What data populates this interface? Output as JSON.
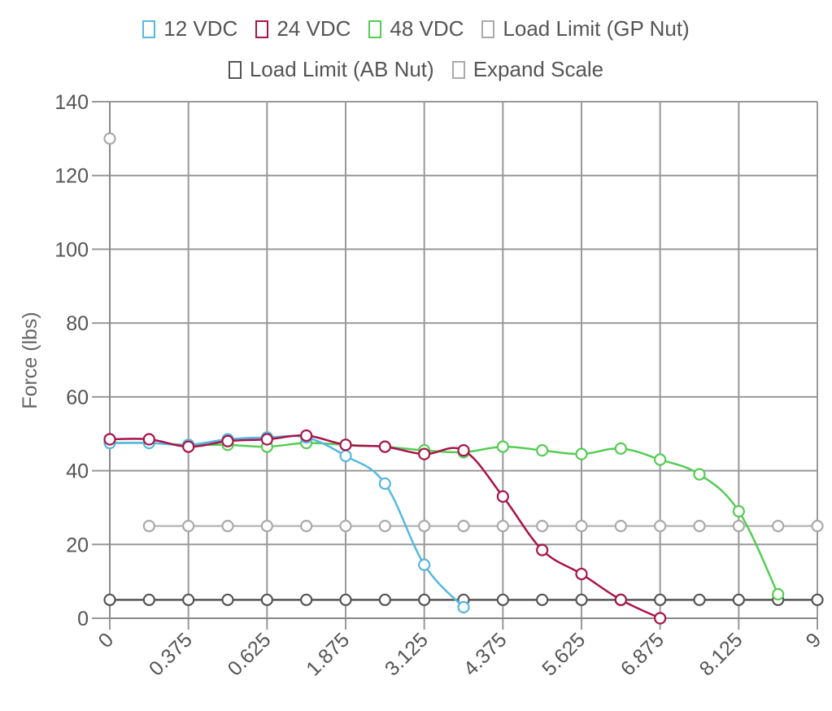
{
  "legend": {
    "row1": [
      {
        "label": "12 VDC",
        "color": "#55b8e0"
      },
      {
        "label": "24 VDC",
        "color": "#a8144a"
      },
      {
        "label": "48 VDC",
        "color": "#55cc55"
      },
      {
        "label": "Load Limit (GP Nut)",
        "color": "#aaaaaa"
      }
    ],
    "row2": [
      {
        "label": "Load Limit (AB Nut)",
        "color": "#555555"
      },
      {
        "label": "Expand Scale",
        "color": "#aaaaaa"
      }
    ]
  },
  "chart_data": {
    "type": "line",
    "ylabel": "Force (lbs)",
    "xlabel": "",
    "categories": [
      "0",
      "",
      "0.375",
      "",
      "0.625",
      "",
      "1.875",
      "",
      "3.125",
      "",
      "4.375",
      "",
      "5.625",
      "",
      "6.875",
      "",
      "8.125",
      "",
      "9"
    ],
    "ylim": [
      0,
      140
    ],
    "yticks": [
      0,
      20,
      40,
      60,
      80,
      100,
      120,
      140
    ],
    "grid": true,
    "legend_position": "top",
    "series": [
      {
        "name": "12 VDC",
        "color": "#55b8e0",
        "values": [
          47.5,
          47.5,
          47,
          48.5,
          49,
          49,
          44,
          36.5,
          14.5,
          3,
          null,
          null,
          null,
          null,
          null,
          null,
          null,
          null,
          null
        ]
      },
      {
        "name": "24 VDC",
        "color": "#a8144a",
        "values": [
          48.5,
          48.5,
          46.5,
          48,
          48.5,
          49.5,
          47,
          46.5,
          44.5,
          45.5,
          33,
          18.5,
          12,
          5,
          0,
          null,
          null,
          null,
          null
        ]
      },
      {
        "name": "48 VDC",
        "color": "#55cc55",
        "values": [
          47.5,
          47.5,
          47,
          47,
          46.5,
          47.5,
          47,
          46.5,
          45.5,
          45,
          46.5,
          45.5,
          44.5,
          46,
          43,
          39,
          29,
          6.5,
          null
        ]
      },
      {
        "name": "Load Limit (GP Nut)",
        "color": "#aaaaaa",
        "values": [
          130,
          25,
          25,
          25,
          25,
          25,
          25,
          25,
          25,
          25,
          25,
          25,
          25,
          25,
          25,
          25,
          25,
          25,
          25
        ]
      },
      {
        "name": "Load Limit (AB Nut)",
        "color": "#555555",
        "values": [
          5,
          5,
          5,
          5,
          5,
          5,
          5,
          5,
          5,
          5,
          5,
          5,
          5,
          5,
          5,
          5,
          5,
          5,
          5
        ]
      }
    ]
  }
}
